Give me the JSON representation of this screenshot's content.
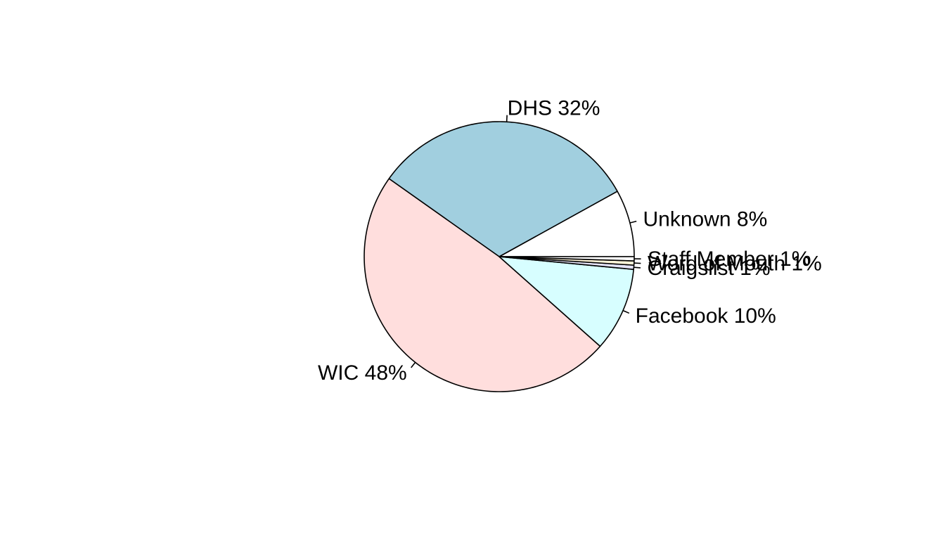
{
  "chart_data": {
    "type": "pie",
    "direction": "counterclockwise",
    "start_angle_deg": 0,
    "slices": [
      {
        "label": "Unknown 8%",
        "category": "Unknown",
        "value": 8,
        "color": "#FFFFFF"
      },
      {
        "label": "DHS 32%",
        "category": "DHS",
        "value": 32,
        "color": "#A1CFDF"
      },
      {
        "label": "WIC 48%",
        "category": "WIC",
        "value": 48,
        "color": "#FFDEDD"
      },
      {
        "label": "Facebook 10%",
        "category": "Facebook",
        "value": 10,
        "color": "#D7FEFF"
      },
      {
        "label": "Craigslist 1%",
        "category": "Craigslist",
        "value": 0.5,
        "color": "#E6E5FA"
      },
      {
        "label": "Word of Mouth 1%",
        "category": "Word of Mouth",
        "value": 0.5,
        "color": "#FFF5D9"
      },
      {
        "label": "Staff Member 1%",
        "category": "Staff Member",
        "value": 0.5,
        "color": "#FFFFFF"
      }
    ],
    "legend": "none",
    "title": ""
  }
}
